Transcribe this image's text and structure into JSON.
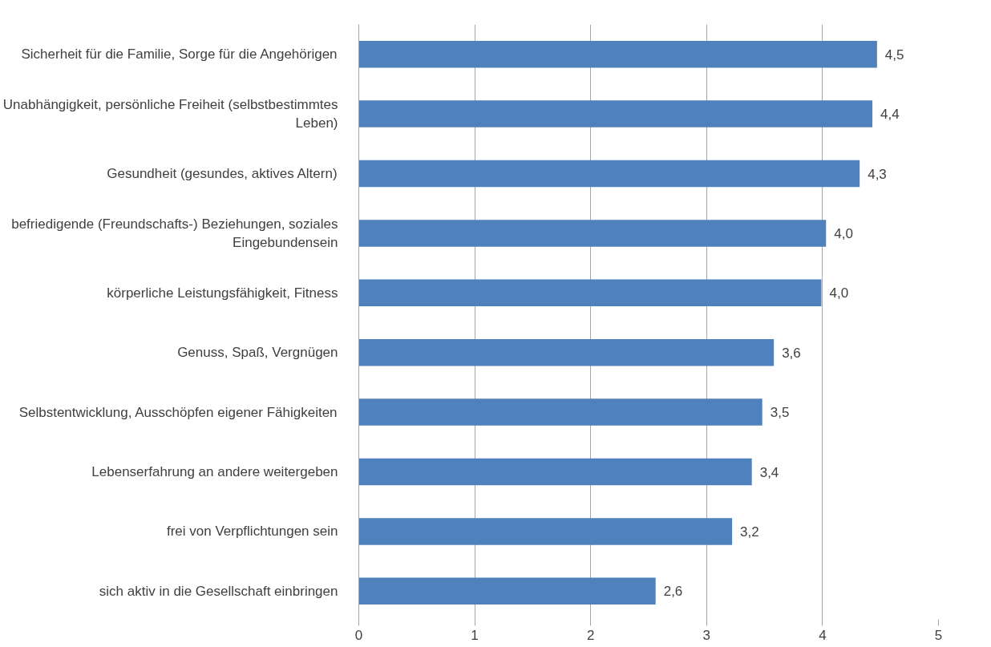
{
  "chart_data": {
    "type": "bar",
    "orientation": "horizontal",
    "categories": [
      "Sicherheit für die Familie, Sorge für die Angehörigen",
      "Unabhängigkeit, persönliche Freiheit (selbstbestimmtes Leben)",
      "Gesundheit (gesundes, aktives Altern)",
      "befriedigende (Freundschafts-) Beziehungen, soziales Eingebundensein",
      "körperliche Leistungsfähigkeit, Fitness",
      "Genuss, Spaß, Vergnügen",
      "Selbstentwicklung, Ausschöpfen eigener Fähigkeiten",
      "Lebenserfahrung an andere weitergeben",
      "frei von Verpflichtungen sein",
      "sich aktiv in die Gesellschaft einbringen"
    ],
    "values": [
      4.47,
      4.43,
      4.32,
      4.03,
      3.99,
      3.58,
      3.48,
      3.39,
      3.22,
      2.56
    ],
    "value_labels": [
      "4,5",
      "4,4",
      "4,3",
      "4,0",
      "4,0",
      "3,6",
      "3,5",
      "3,4",
      "3,2",
      "2,6"
    ],
    "color": "#4f81bd",
    "xlim": [
      0,
      5
    ],
    "xticks": [
      0,
      1,
      2,
      3,
      4,
      5
    ],
    "grid": "x"
  }
}
